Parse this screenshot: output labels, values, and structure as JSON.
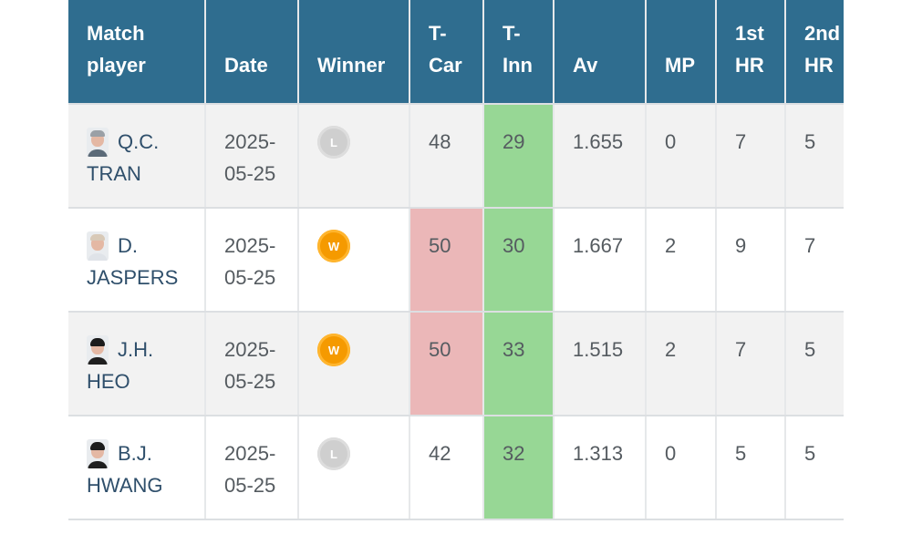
{
  "table": {
    "headers": [
      "Match\nplayer",
      "Date",
      "Winner",
      "T-\nCar",
      "T-\nInn",
      "Av",
      "MP",
      "1st\nHR",
      "2nd\nHR"
    ],
    "rows": [
      {
        "player": {
          "initials": "Q.C.",
          "surname": "TRAN",
          "avatar": "person-avatar-icon"
        },
        "date_line1": "2025-",
        "date_line2": "05-25",
        "winner": {
          "label": "L",
          "type": "loss"
        },
        "t_car": "48",
        "t_inn": "29",
        "av": "1.655",
        "mp": "0",
        "hr1": "7",
        "hr2": "5"
      },
      {
        "player": {
          "initials": "D.",
          "surname": "JASPERS",
          "avatar": "person-avatar-icon"
        },
        "date_line1": "2025-",
        "date_line2": "05-25",
        "winner": {
          "label": "W",
          "type": "win"
        },
        "t_car": "50",
        "t_inn": "30",
        "av": "1.667",
        "mp": "2",
        "hr1": "9",
        "hr2": "7"
      },
      {
        "player": {
          "initials": "J.H.",
          "surname": "HEO",
          "avatar": "person-avatar-icon"
        },
        "date_line1": "2025-",
        "date_line2": "05-25",
        "winner": {
          "label": "W",
          "type": "win"
        },
        "t_car": "50",
        "t_inn": "33",
        "av": "1.515",
        "mp": "2",
        "hr1": "7",
        "hr2": "5"
      },
      {
        "player": {
          "initials": "B.J.",
          "surname": "HWANG",
          "avatar": "person-avatar-icon"
        },
        "date_line1": "2025-",
        "date_line2": "05-25",
        "winner": {
          "label": "L",
          "type": "loss"
        },
        "t_car": "42",
        "t_inn": "32",
        "av": "1.313",
        "mp": "0",
        "hr1": "5",
        "hr2": "5"
      }
    ]
  },
  "colors": {
    "header_bg": "#2f6d8f",
    "highlight_green": "#97d795",
    "highlight_red": "#ebb7b8",
    "win_badge": "#f59a00",
    "loss_badge": "#cfcfcf"
  }
}
